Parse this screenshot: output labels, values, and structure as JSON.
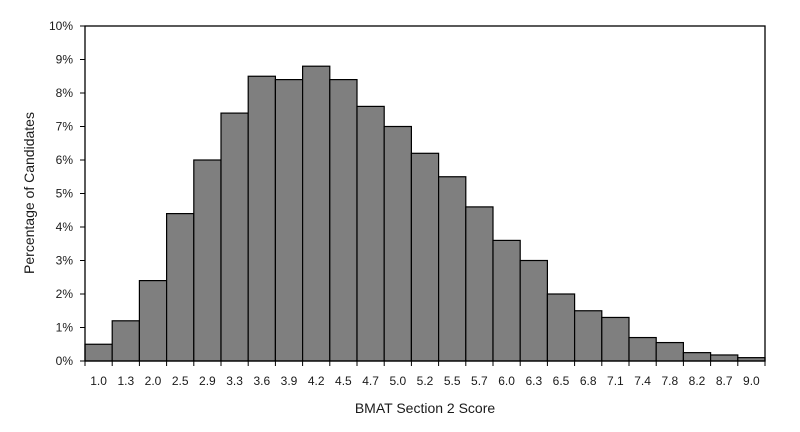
{
  "chart_data": {
    "type": "bar",
    "title": "",
    "xlabel": "BMAT Section 2 Score",
    "ylabel": "Percentage of Candidates",
    "categories": [
      "1.0",
      "1.3",
      "2.0",
      "2.5",
      "2.9",
      "3.3",
      "3.6",
      "3.9",
      "4.2",
      "4.5",
      "4.7",
      "5.0",
      "5.2",
      "5.5",
      "5.7",
      "6.0",
      "6.3",
      "6.5",
      "6.8",
      "7.1",
      "7.4",
      "7.8",
      "8.2",
      "8.7",
      "9.0"
    ],
    "values": [
      0.5,
      1.2,
      2.4,
      4.4,
      6.0,
      7.4,
      8.5,
      8.4,
      8.8,
      8.4,
      7.6,
      7.0,
      6.2,
      5.5,
      4.6,
      3.6,
      3.0,
      2.0,
      1.5,
      1.3,
      0.7,
      0.55,
      0.25,
      0.18,
      0.1
    ],
    "ylim": [
      0,
      10
    ],
    "yticks": [
      "0%",
      "1%",
      "2%",
      "3%",
      "4%",
      "5%",
      "6%",
      "7%",
      "8%",
      "9%",
      "10%"
    ],
    "bar_color": "#7f7f7f",
    "bar_edge_color": "#000000",
    "grid": false,
    "legend": "none"
  }
}
